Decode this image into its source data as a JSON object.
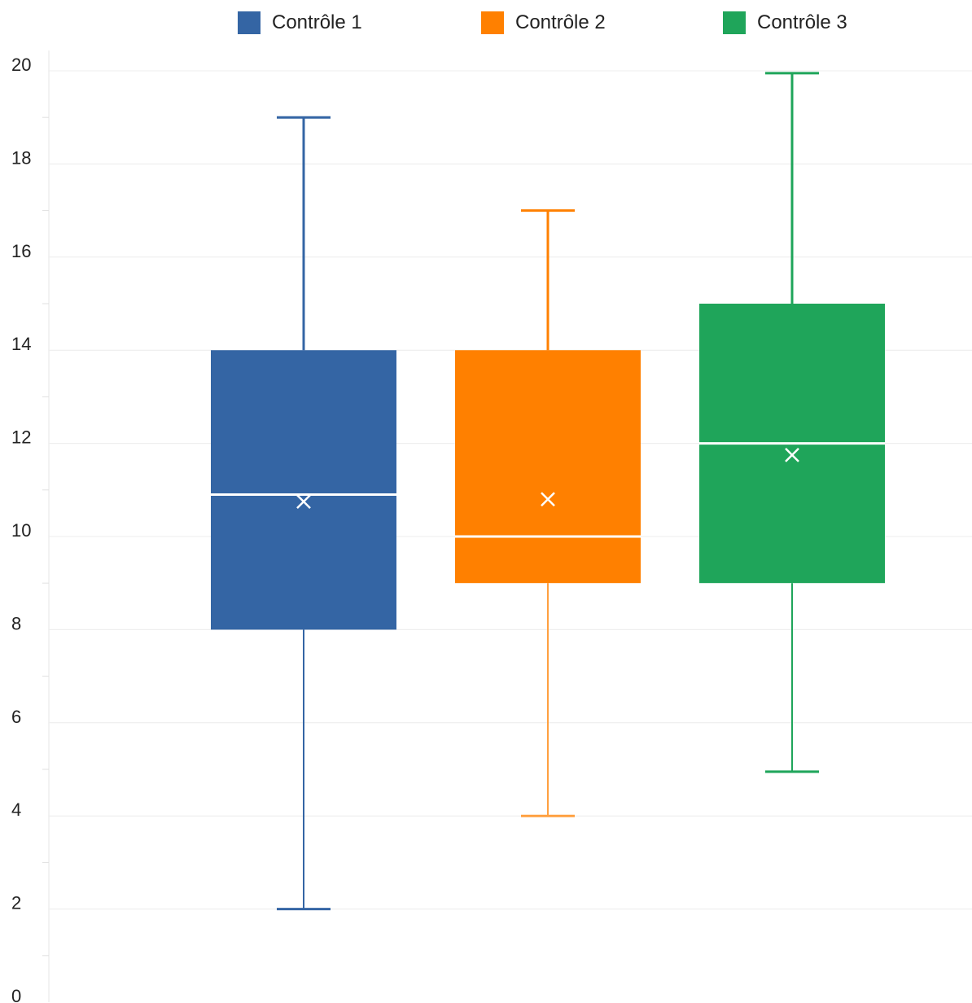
{
  "chart_data": {
    "type": "box",
    "title": "",
    "xlabel": "",
    "ylabel": "",
    "ylim": [
      0,
      20
    ],
    "yticks": [
      0,
      2,
      4,
      6,
      8,
      10,
      12,
      14,
      16,
      18,
      20
    ],
    "grid": true,
    "legend_position": "top",
    "series": [
      {
        "name": "Contrôle 1",
        "color": "#3465A4",
        "whisker_color": "#3465A4",
        "min": 2,
        "q1": 8,
        "median": 10.9,
        "q3": 14,
        "max": 19,
        "mean": 10.75
      },
      {
        "name": "Contrôle 2",
        "color": "#FF8000",
        "whisker_color": "#FFA040",
        "min": 4,
        "q1": 9,
        "median": 10,
        "q3": 14,
        "max": 17,
        "mean": 10.8
      },
      {
        "name": "Contrôle 3",
        "color": "#1FA55A",
        "whisker_color": "#1FA55A",
        "min": 4.95,
        "q1": 9,
        "median": 12,
        "q3": 15,
        "max": 19.95,
        "mean": 11.75
      }
    ]
  }
}
